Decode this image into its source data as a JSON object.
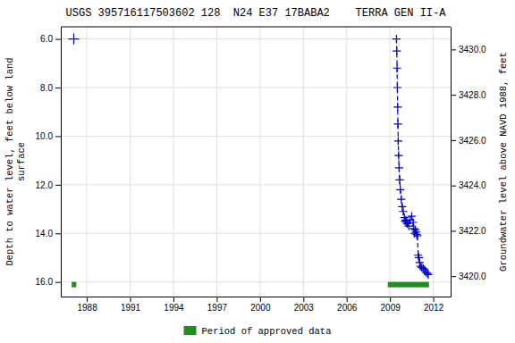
{
  "chart_data": {
    "type": "line",
    "title": "USGS 395716117503602 128  N24 E37 17BABA2    TERRA GEN II-A",
    "y_label": "Depth to water level, feet below land\nsurface",
    "y2_label": "Groundwater level above NAVD 1988, feet",
    "xlim": [
      1986.2,
      2013.2
    ],
    "xticks": [
      1988,
      1991,
      1994,
      1997,
      2000,
      2003,
      2006,
      2009,
      2012
    ],
    "ylim": [
      16.6,
      5.5
    ],
    "yticks": [
      {
        "value": 6.0,
        "label": "6.0"
      },
      {
        "value": 8.0,
        "label": "8.0"
      },
      {
        "value": 10.0,
        "label": "10.0"
      },
      {
        "value": 12.0,
        "label": "12.0"
      },
      {
        "value": 14.0,
        "label": "14.0"
      },
      {
        "value": 16.0,
        "label": "16.0"
      }
    ],
    "y2lim": [
      3419.1,
      3431.0
    ],
    "y2ticks": [
      {
        "value": 3420.0,
        "label": "3420.0"
      },
      {
        "value": 3422.0,
        "label": "3422.0"
      },
      {
        "value": 3424.0,
        "label": "3424.0"
      },
      {
        "value": 3426.0,
        "label": "3426.0"
      },
      {
        "value": 3428.0,
        "label": "3428.0"
      },
      {
        "value": 3430.0,
        "label": "3430.0"
      }
    ],
    "grid": true,
    "legend": "bottom",
    "series": [
      {
        "type": "scatter",
        "marker": "plus",
        "color": "#0000cc",
        "x": [
          1987.1
        ],
        "values": [
          6.0
        ]
      },
      {
        "type": "line",
        "line_style": "dashed",
        "marker": "plus",
        "color": "#0000cc",
        "x": [
          2009.45,
          2009.47,
          2009.49,
          2009.51,
          2009.53,
          2009.55,
          2009.57,
          2009.6,
          2009.63,
          2009.67,
          2009.72,
          2009.78,
          2009.85,
          2009.92,
          2010.0,
          2010.05,
          2010.1,
          2010.15,
          2010.2,
          2010.3,
          2010.4,
          2010.5,
          2010.6,
          2010.65,
          2010.7,
          2010.75,
          2010.8,
          2010.85,
          2010.9,
          2010.95,
          2011.0,
          2011.05,
          2011.1,
          2011.2,
          2011.3,
          2011.4,
          2011.5,
          2011.6,
          2011.65
        ],
        "values": [
          6.0,
          6.5,
          7.2,
          8.0,
          8.8,
          9.5,
          10.2,
          10.8,
          11.3,
          11.8,
          12.2,
          12.6,
          12.9,
          13.1,
          13.35,
          13.5,
          13.45,
          13.55,
          13.6,
          13.7,
          13.45,
          13.3,
          13.55,
          13.8,
          14.0,
          13.85,
          13.95,
          14.05,
          14.1,
          14.9,
          15.0,
          15.2,
          15.35,
          15.4,
          15.45,
          15.5,
          15.6,
          15.65,
          15.7
        ]
      },
      {
        "name": "Period of approved data",
        "type": "span",
        "color": "#228B22",
        "x": [
          1986.95,
          2008.85
        ],
        "x_end": [
          1987.27,
          2011.7
        ],
        "values": [
          16.0,
          16.0
        ],
        "values_end": [
          16.22,
          16.22
        ]
      }
    ]
  }
}
